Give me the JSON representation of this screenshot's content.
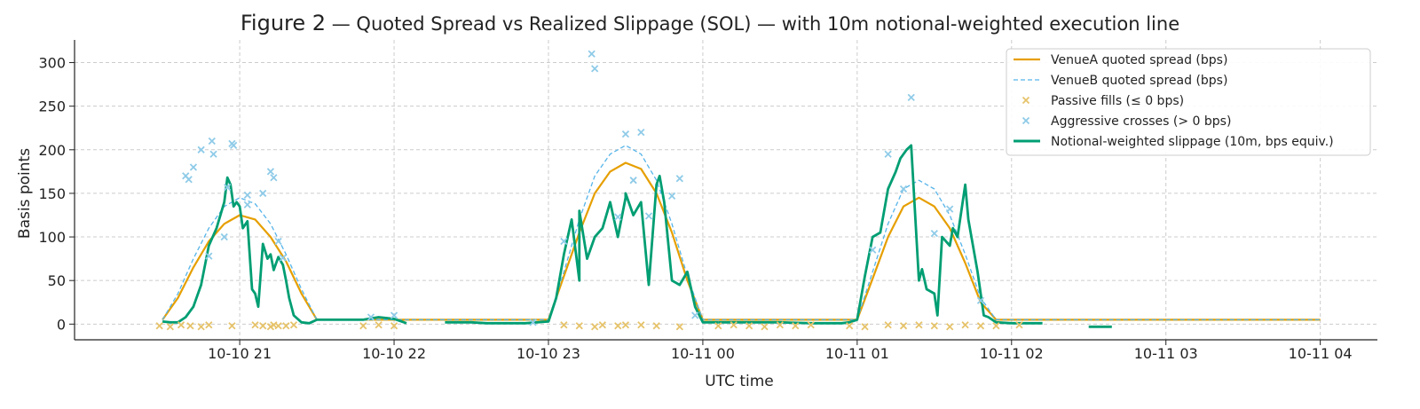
{
  "chart_data": {
    "type": "line",
    "title_prefix": "Figure 2",
    "title_rest": " — Quoted Spread vs Realized Slippage (SOL) — with 10m notional-weighted execution line",
    "xlabel": "UTC time",
    "ylabel": "Basis points",
    "x_unit": "hours after 10-10 21:00 UTC",
    "xlim": [
      -1.07,
      7.37
    ],
    "ylim": [
      -18,
      326
    ],
    "xticks": [
      {
        "x": 0,
        "label": "10-10 21"
      },
      {
        "x": 1,
        "label": "10-10 22"
      },
      {
        "x": 2,
        "label": "10-10 23"
      },
      {
        "x": 3,
        "label": "10-11 00"
      },
      {
        "x": 4,
        "label": "10-11 01"
      },
      {
        "x": 5,
        "label": "10-11 02"
      },
      {
        "x": 6,
        "label": "10-11 03"
      },
      {
        "x": 7,
        "label": "10-11 04"
      }
    ],
    "yticks": [
      0,
      50,
      100,
      150,
      200,
      250,
      300
    ],
    "grid": true,
    "legend_position": "top-right",
    "colors": {
      "venueA": "#e69f00",
      "venueB": "#56b4e9",
      "passive": "#e6c36a",
      "aggressive": "#8fcbe8",
      "weighted": "#009e73"
    },
    "series": [
      {
        "name": "VenueA quoted spread (bps)",
        "style": "solid",
        "color": "#e69f00",
        "x": [
          -0.5,
          -0.4,
          -0.3,
          -0.2,
          -0.1,
          0.0,
          0.1,
          0.2,
          0.3,
          0.4,
          0.5,
          0.6,
          1.0,
          2.0,
          2.0,
          2.1,
          2.2,
          2.3,
          2.4,
          2.5,
          2.6,
          2.7,
          2.8,
          2.9,
          3.0,
          3.1,
          4.0,
          4.0,
          4.1,
          4.2,
          4.3,
          4.4,
          4.5,
          4.6,
          4.7,
          4.8,
          4.9,
          5.0,
          5.1,
          7.0
        ],
        "y": [
          5,
          30,
          65,
          95,
          115,
          125,
          120,
          100,
          72,
          35,
          5,
          5,
          5,
          5,
          5,
          55,
          105,
          150,
          175,
          185,
          178,
          150,
          105,
          50,
          5,
          5,
          5,
          5,
          52,
          100,
          135,
          145,
          135,
          110,
          70,
          25,
          5,
          5,
          5,
          5
        ]
      },
      {
        "name": "VenueB quoted spread (bps)",
        "style": "dashed",
        "color": "#56b4e9",
        "x": [
          -0.5,
          -0.4,
          -0.3,
          -0.2,
          -0.1,
          0.0,
          0.1,
          0.2,
          0.3,
          0.4,
          0.5,
          0.6,
          1.0,
          2.0,
          2.0,
          2.1,
          2.2,
          2.3,
          2.4,
          2.5,
          2.6,
          2.7,
          2.8,
          2.9,
          3.0,
          3.1,
          4.0,
          4.0,
          4.1,
          4.2,
          4.3,
          4.4,
          4.5,
          4.6,
          4.7,
          4.8,
          4.9,
          5.0,
          5.1,
          7.0
        ],
        "y": [
          5,
          35,
          75,
          110,
          135,
          145,
          138,
          115,
          80,
          40,
          5,
          5,
          5,
          5,
          5,
          60,
          120,
          170,
          195,
          205,
          195,
          165,
          115,
          55,
          5,
          5,
          5,
          5,
          60,
          115,
          155,
          165,
          155,
          125,
          80,
          30,
          5,
          5,
          5,
          5
        ]
      },
      {
        "name": "Notional-weighted slippage (10m, bps equiv.)",
        "style": "solid-bold",
        "color": "#009e73",
        "x": [
          -0.5,
          -0.45,
          -0.4,
          -0.35,
          -0.3,
          -0.25,
          -0.2,
          -0.15,
          -0.1,
          -0.08,
          -0.06,
          -0.04,
          -0.02,
          0.0,
          0.02,
          0.05,
          0.08,
          0.1,
          0.12,
          0.15,
          0.18,
          0.2,
          0.22,
          0.25,
          0.28,
          0.3,
          0.32,
          0.35,
          0.4,
          0.45,
          0.5,
          0.6,
          0.8,
          0.9,
          1.0,
          1.08
        ],
        "y": [
          3,
          2,
          2,
          8,
          20,
          45,
          90,
          110,
          140,
          168,
          160,
          135,
          140,
          135,
          110,
          118,
          40,
          35,
          20,
          92,
          75,
          80,
          62,
          77,
          68,
          50,
          30,
          10,
          2,
          1,
          5,
          5,
          5,
          8,
          6,
          1
        ]
      },
      {
        "name": "Notional-weighted slippage (10m, bps equiv.) b",
        "style": "solid-bold",
        "color": "#009e73",
        "x": [
          1.33,
          1.5,
          1.6,
          1.75,
          1.85,
          2.0,
          2.05,
          2.1,
          2.15,
          2.2,
          2.2,
          2.25,
          2.3,
          2.35,
          2.4,
          2.45,
          2.5,
          2.5,
          2.55,
          2.6,
          2.65,
          2.7,
          2.72,
          2.75,
          2.8,
          2.85,
          2.9,
          2.95,
          3.0,
          3.1
        ],
        "y": [
          2,
          2,
          1,
          1,
          1,
          3,
          30,
          80,
          120,
          50,
          130,
          75,
          100,
          110,
          140,
          100,
          145,
          150,
          125,
          140,
          45,
          160,
          170,
          140,
          50,
          45,
          60,
          20,
          2,
          2
        ]
      },
      {
        "name": "Notional-weighted slippage (10m, bps equiv.) c",
        "style": "solid-bold",
        "color": "#009e73",
        "x": [
          3.1,
          3.3,
          3.5,
          3.7,
          3.8,
          3.9,
          3.95,
          4.0,
          4.05,
          4.1,
          4.15,
          4.2,
          4.25,
          4.28,
          4.32,
          4.35,
          4.4,
          4.42,
          4.45,
          4.5,
          4.52,
          4.55,
          4.6,
          4.62,
          4.65,
          4.7,
          4.72,
          4.78,
          4.82,
          4.85,
          4.9,
          5.0,
          5.1,
          5.2
        ],
        "y": [
          2,
          2,
          2,
          1,
          1,
          1,
          2,
          5,
          55,
          100,
          105,
          155,
          175,
          190,
          200,
          205,
          50,
          63,
          40,
          35,
          10,
          100,
          90,
          110,
          100,
          160,
          120,
          60,
          10,
          8,
          2,
          1,
          1,
          1
        ]
      },
      {
        "name": "Notional-weighted slippage (10m, bps equiv.) d",
        "style": "solid-bold",
        "color": "#009e73",
        "x": [
          5.5,
          5.65
        ],
        "y": [
          -3,
          -3
        ]
      },
      {
        "name": "Passive fills (≤ 0 bps)",
        "style": "markers",
        "color": "#e6c36a",
        "x": [
          -0.52,
          -0.45,
          -0.38,
          -0.32,
          -0.25,
          -0.2,
          -0.05,
          0.1,
          0.15,
          0.2,
          0.22,
          0.25,
          0.3,
          0.35,
          0.8,
          0.9,
          1.0,
          2.1,
          2.2,
          2.3,
          2.35,
          2.45,
          2.5,
          2.6,
          2.7,
          2.85,
          3.1,
          3.2,
          3.3,
          3.4,
          3.5,
          3.6,
          3.7,
          3.95,
          4.05,
          4.2,
          4.3,
          4.4,
          4.5,
          4.6,
          4.7,
          4.8,
          4.9,
          5.05
        ],
        "y": [
          -2,
          -3,
          -1,
          -2,
          -3,
          -1,
          -2,
          -1,
          -2,
          -3,
          -1,
          -2,
          -2,
          -1,
          -2,
          -1,
          -2,
          -1,
          -2,
          -3,
          -1,
          -2,
          -1,
          -1,
          -2,
          -3,
          -2,
          -1,
          -2,
          -3,
          -1,
          -2,
          -1,
          -2,
          -3,
          -1,
          -2,
          -1,
          -2,
          -3,
          -1,
          -2,
          -2,
          -1
        ]
      },
      {
        "name": "Aggressive crosses (> 0 bps)",
        "style": "markers",
        "color": "#8fcbe8",
        "x": [
          -0.35,
          -0.33,
          -0.3,
          -0.25,
          -0.18,
          -0.17,
          -0.05,
          -0.04,
          -0.08,
          -0.1,
          -0.2,
          0.05,
          0.15,
          0.2,
          0.22,
          0.25,
          0.28,
          0.05,
          2.1,
          2.28,
          2.3,
          2.5,
          2.6,
          2.55,
          2.45,
          2.65,
          2.8,
          2.85,
          4.1,
          4.2,
          4.35,
          4.6,
          4.5,
          4.8,
          4.3,
          2.95,
          1.0,
          0.85,
          1.9
        ],
        "y": [
          170,
          166,
          180,
          200,
          210,
          195,
          207,
          205,
          157,
          100,
          78,
          148,
          150,
          175,
          168,
          95,
          76,
          137,
          95,
          310,
          293,
          218,
          220,
          165,
          123,
          124,
          147,
          167,
          85,
          195,
          260,
          132,
          104,
          27,
          155,
          10,
          10,
          8,
          2
        ]
      }
    ]
  },
  "legend": [
    {
      "label": "VenueA quoted spread (bps)",
      "kind": "line-solid",
      "color": "#e69f00"
    },
    {
      "label": "VenueB quoted spread (bps)",
      "kind": "line-dashed",
      "color": "#56b4e9"
    },
    {
      "label": "Passive fills (≤ 0 bps)",
      "kind": "marker",
      "color": "#e6c36a"
    },
    {
      "label": "Aggressive crosses (> 0 bps)",
      "kind": "marker",
      "color": "#8fcbe8"
    },
    {
      "label": "Notional-weighted slippage (10m, bps equiv.)",
      "kind": "line-bold",
      "color": "#009e73"
    }
  ]
}
